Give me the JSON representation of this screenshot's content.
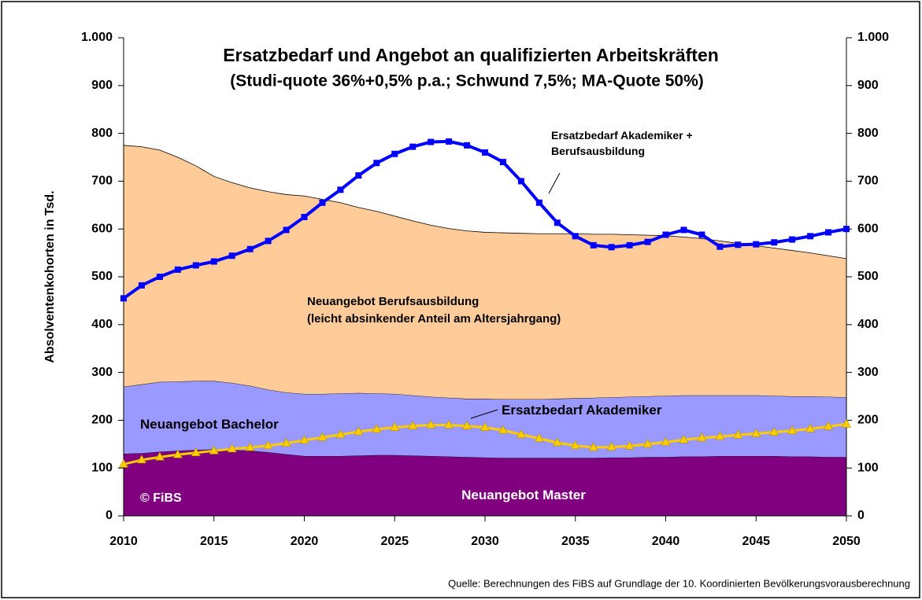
{
  "chart_data": {
    "type": "area",
    "title": "Ersatzbedarf und Angebot an qualifizierten Arbeitskräften",
    "subtitle": "(Studi-quote 36%+0,5% p.a.; Schwund 7,5%; MA-Quote 50%)",
    "ylabel": "Absolventenkohorten in Tsd.",
    "source": "Quelle: Berechnungen des FiBS auf Grundlage der 10. Koordinierten Bevölkerungsvorausberechnung",
    "copyright": "© FiBS",
    "annotation": "(leicht absinkender Anteil am Altersjahrgang)",
    "x": [
      2010,
      2011,
      2012,
      2013,
      2014,
      2015,
      2016,
      2017,
      2018,
      2019,
      2020,
      2021,
      2022,
      2023,
      2024,
      2025,
      2026,
      2027,
      2028,
      2029,
      2030,
      2031,
      2032,
      2033,
      2034,
      2035,
      2036,
      2037,
      2038,
      2039,
      2040,
      2041,
      2042,
      2043,
      2044,
      2045,
      2046,
      2047,
      2048,
      2049,
      2050
    ],
    "xlim": [
      2010,
      2050
    ],
    "xticks": [
      2010,
      2015,
      2020,
      2025,
      2030,
      2035,
      2040,
      2045,
      2050
    ],
    "ylim": [
      0,
      1000
    ],
    "yticks": [
      0,
      100,
      200,
      300,
      400,
      500,
      600,
      700,
      800,
      900,
      {
        "value": 1000,
        "label": "1.000"
      }
    ],
    "y2lim": [
      0,
      1000
    ],
    "y2ticks": [
      0,
      100,
      200,
      300,
      400,
      500,
      600,
      700,
      800,
      900,
      {
        "value": 1000,
        "label": "1.000"
      }
    ],
    "series": [
      {
        "name": "Neuangebot Master",
        "type": "area",
        "color": "#800080",
        "values": [
          130,
          131,
          134,
          136,
          138,
          139,
          138,
          136,
          133,
          129,
          125,
          125,
          125,
          126,
          127,
          127,
          126,
          125,
          124,
          123,
          122,
          121,
          121,
          121,
          121,
          121,
          121,
          122,
          122,
          123,
          123,
          124,
          124,
          125,
          125,
          125,
          125,
          124,
          124,
          123,
          123
        ]
      },
      {
        "name": "Neuangebot Bachelor",
        "type": "area",
        "color": "#9999FF",
        "values": [
          140,
          144,
          146,
          145,
          144,
          143,
          140,
          136,
          131,
          129,
          130,
          130,
          131,
          131,
          129,
          128,
          126,
          124,
          123,
          122,
          123,
          123,
          123,
          123,
          124,
          125,
          126,
          126,
          127,
          127,
          128,
          128,
          128,
          127,
          127,
          127,
          126,
          126,
          126,
          126,
          125
        ]
      },
      {
        "name": "Neuangebot Berufsausbildung",
        "type": "area",
        "color": "#FFCC99",
        "values": [
          505,
          497,
          485,
          469,
          450,
          428,
          419,
          414,
          414,
          414,
          414,
          407,
          399,
          388,
          381,
          372,
          365,
          359,
          354,
          351,
          348,
          348,
          347,
          346,
          345,
          344,
          342,
          341,
          339,
          337,
          335,
          331,
          328,
          323,
          318,
          313,
          309,
          305,
          300,
          295,
          290
        ]
      },
      {
        "name": "Ersatzbedarf Akademiker + Berufsausbildung",
        "type": "line",
        "marker": "square",
        "color": "#0000FF",
        "values": [
          455,
          482,
          500,
          515,
          524,
          532,
          544,
          558,
          575,
          598,
          625,
          655,
          682,
          712,
          738,
          757,
          772,
          782,
          783,
          775,
          760,
          740,
          700,
          655,
          613,
          585,
          566,
          562,
          566,
          573,
          588,
          598,
          588,
          563,
          567,
          568,
          572,
          578,
          585,
          593,
          600
        ]
      },
      {
        "name": "Ersatzbedarf Akademiker",
        "type": "line",
        "marker": "triangle",
        "color": "#FFCC00",
        "values": [
          108,
          117,
          123,
          128,
          132,
          136,
          140,
          143,
          147,
          152,
          158,
          164,
          170,
          176,
          181,
          185,
          188,
          190,
          190,
          188,
          185,
          179,
          170,
          162,
          153,
          147,
          143,
          144,
          146,
          150,
          154,
          159,
          163,
          166,
          169,
          172,
          175,
          178,
          182,
          187,
          192
        ]
      }
    ]
  }
}
